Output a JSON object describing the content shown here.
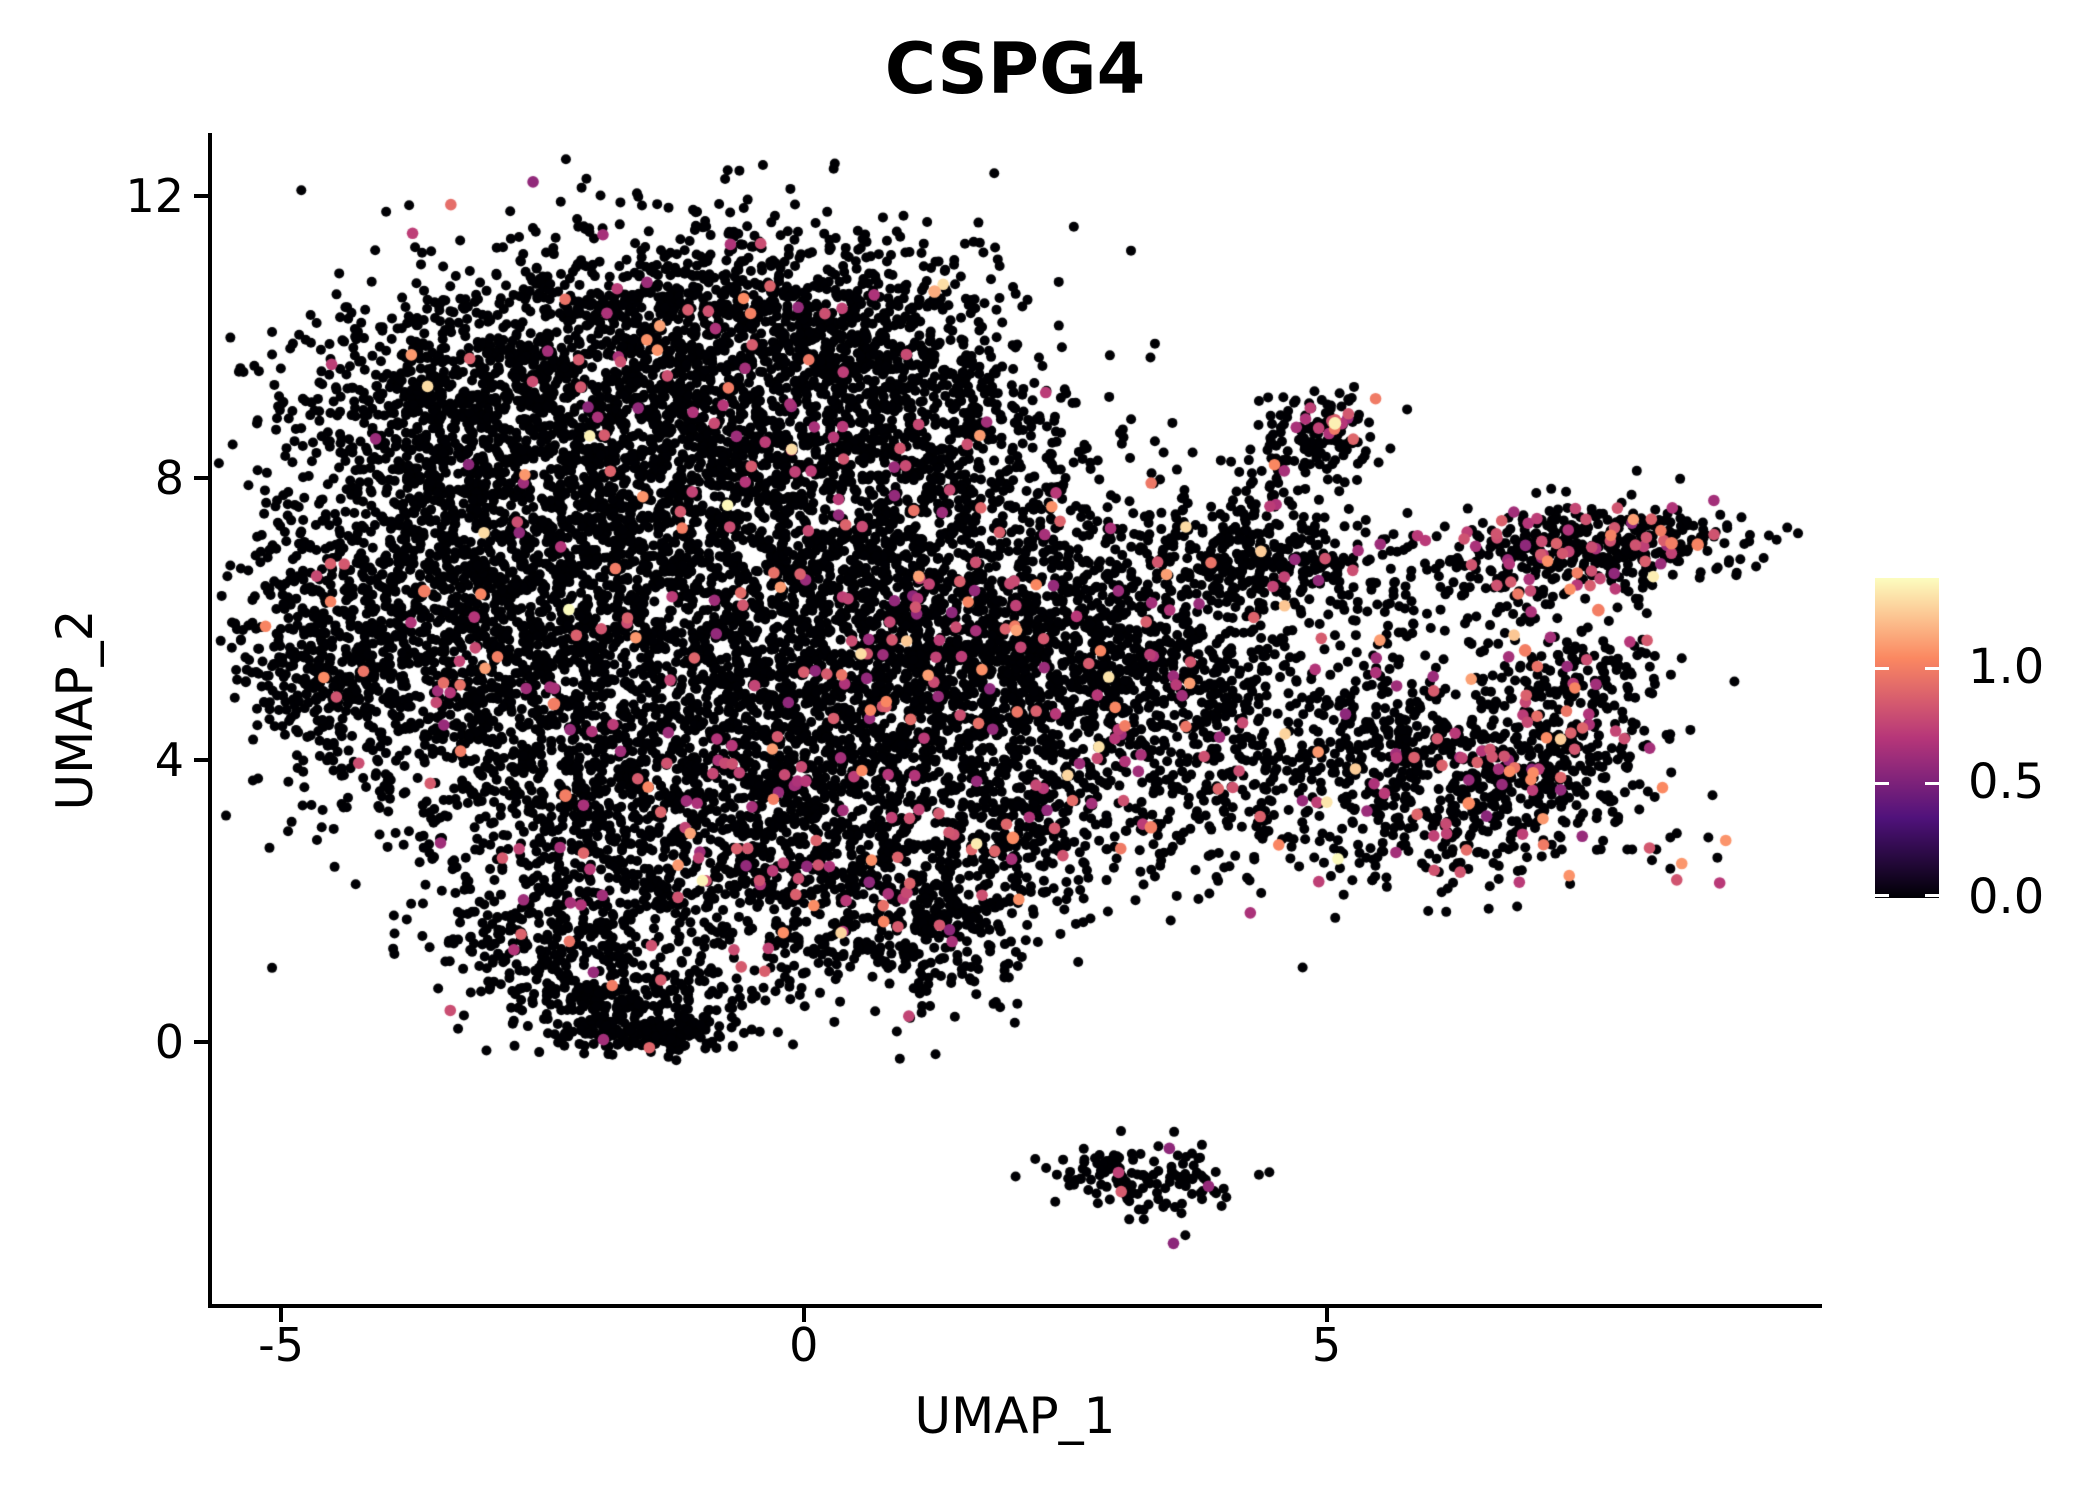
{
  "figure": {
    "background": "#FFFFFF"
  },
  "title": "CSPG4",
  "axes": {
    "x": {
      "label": "UMAP_1",
      "ticks": [
        {
          "value": -5,
          "label": "-5"
        },
        {
          "value": 0,
          "label": "0"
        },
        {
          "value": 5,
          "label": "5"
        }
      ],
      "range": [
        -5.68,
        9.72
      ]
    },
    "y": {
      "label": "UMAP_2",
      "ticks": [
        {
          "value": 0,
          "label": "0"
        },
        {
          "value": 4,
          "label": "4"
        },
        {
          "value": 8,
          "label": "8"
        },
        {
          "value": 12,
          "label": "12"
        }
      ],
      "range": [
        -3.74,
        12.87
      ]
    }
  },
  "colorbar": {
    "ticks": [
      {
        "value": 1.0,
        "label": "1.0"
      },
      {
        "value": 0.5,
        "label": "0.5"
      },
      {
        "value": 0.0,
        "label": "0.0"
      }
    ],
    "vmin": 0.0,
    "vmax": 1.39,
    "colormap": "magma",
    "stops": [
      {
        "t": 0.0,
        "color": "#000004"
      },
      {
        "t": 0.25,
        "color": "#50127B"
      },
      {
        "t": 0.5,
        "color": "#B63679"
      },
      {
        "t": 0.75,
        "color": "#FB8861"
      },
      {
        "t": 1.0,
        "color": "#FCFDBF"
      }
    ]
  },
  "chart_data": {
    "type": "scatter",
    "title": "CSPG4",
    "xlabel": "UMAP_1",
    "ylabel": "UMAP_2",
    "xlim": [
      -5.68,
      9.72
    ],
    "ylim": [
      -3.74,
      12.87
    ],
    "x_ticks": [
      -5,
      0,
      5
    ],
    "y_ticks": [
      0,
      4,
      8,
      12
    ],
    "grid": false,
    "legend_position": "right",
    "color_scale": {
      "vmin": 0.0,
      "vmax": 1.39,
      "colormap": "magma"
    },
    "point_radius_px": 5,
    "colored_point_radius_px": 5.8,
    "seed": 20,
    "expression_sampling": {
      "mid_range": [
        0.55,
        0.9
      ],
      "high_range": [
        0.92,
        1.12
      ],
      "top_range": [
        1.22,
        1.39
      ],
      "p_mid": 0.78,
      "p_high": 0.17,
      "p_top": 0.05
    },
    "clusters": [
      [
        -3.2,
        9.2,
        0.95,
        0.85,
        800,
        0.02
      ],
      [
        -1.3,
        10.2,
        0.95,
        0.75,
        720,
        0.02
      ],
      [
        0.3,
        10.1,
        0.75,
        0.8,
        520,
        0.03
      ],
      [
        -3.6,
        6.6,
        0.95,
        1.05,
        820,
        0.02
      ],
      [
        -4.5,
        5.3,
        0.45,
        0.75,
        280,
        0.02
      ],
      [
        -2.1,
        7.9,
        1.1,
        0.95,
        820,
        0.02
      ],
      [
        -0.5,
        8.2,
        0.95,
        0.95,
        640,
        0.03
      ],
      [
        -2.6,
        4.6,
        1.1,
        1.1,
        820,
        0.03
      ],
      [
        -1.0,
        5.6,
        1.1,
        1.1,
        820,
        0.04
      ],
      [
        0.5,
        6.1,
        0.95,
        1.1,
        720,
        0.05
      ],
      [
        1.5,
        7.2,
        0.75,
        0.95,
        460,
        0.05
      ],
      [
        -1.6,
        2.6,
        0.95,
        0.85,
        540,
        0.03
      ],
      [
        -2.4,
        1.4,
        0.6,
        0.55,
        230,
        0.02
      ],
      [
        -1.65,
        0.55,
        0.55,
        0.33,
        250,
        0.015
      ],
      [
        -1.55,
        0.12,
        0.45,
        0.13,
        130,
        0.01
      ],
      [
        0.0,
        3.6,
        0.95,
        0.95,
        640,
        0.045
      ],
      [
        0.4,
        1.9,
        0.7,
        0.7,
        310,
        0.04
      ],
      [
        1.4,
        1.9,
        0.5,
        0.65,
        210,
        0.04
      ],
      [
        1.4,
        4.6,
        0.85,
        0.95,
        540,
        0.05
      ],
      [
        2.2,
        5.6,
        0.7,
        0.85,
        400,
        0.05
      ],
      [
        2.1,
        3.1,
        0.6,
        0.7,
        270,
        0.05
      ],
      [
        3.0,
        5.3,
        0.55,
        0.95,
        260,
        0.06
      ],
      [
        3.7,
        5.0,
        0.55,
        1.1,
        280,
        0.06
      ],
      [
        4.2,
        4.3,
        0.5,
        0.9,
        150,
        0.07
      ],
      [
        1.0,
        8.9,
        0.75,
        0.75,
        400,
        0.03
      ],
      [
        2.3,
        8.9,
        0.45,
        0.6,
        45,
        0.03
      ],
      [
        4.6,
        6.8,
        0.65,
        0.35,
        250,
        0.06
      ],
      [
        3.9,
        6.9,
        0.4,
        0.5,
        70,
        0.05
      ],
      [
        5.5,
        6.1,
        0.4,
        0.5,
        50,
        0.08
      ],
      [
        4.95,
        8.6,
        0.3,
        0.32,
        120,
        0.08
      ],
      [
        5.05,
        8.8,
        0.1,
        0.07,
        8,
        0.9
      ],
      [
        4.55,
        7.9,
        0.3,
        0.45,
        50,
        0.04
      ],
      [
        3.9,
        7.6,
        0.5,
        0.55,
        30,
        0.05
      ],
      [
        7.55,
        7.05,
        0.72,
        0.28,
        400,
        0.12
      ],
      [
        6.8,
        6.6,
        0.3,
        0.3,
        80,
        0.15
      ],
      [
        7.3,
        5.25,
        0.45,
        0.4,
        180,
        0.12
      ],
      [
        6.2,
        3.6,
        0.85,
        0.7,
        520,
        0.06
      ],
      [
        5.6,
        4.3,
        0.4,
        0.55,
        110,
        0.06
      ],
      [
        7.3,
        4.0,
        0.45,
        0.5,
        170,
        0.08
      ],
      [
        8.3,
        2.75,
        0.35,
        0.18,
        13,
        0.15
      ],
      [
        3.6,
        2.9,
        0.5,
        0.6,
        40,
        0.06
      ],
      [
        4.5,
        4.6,
        0.6,
        0.8,
        70,
        0.06
      ],
      [
        3.35,
        -1.95,
        0.42,
        0.28,
        115,
        0.04
      ],
      [
        2.7,
        -1.75,
        0.3,
        0.12,
        20,
        0.05
      ]
    ],
    "highlight_points": [
      [
        5.08,
        8.78,
        1.35
      ],
      [
        8.3,
        7.08,
        1.0
      ],
      [
        8.55,
        7.06,
        1.02
      ],
      [
        7.6,
        6.13,
        1.0
      ],
      [
        6.9,
        5.56,
        1.0
      ],
      [
        6.36,
        3.39,
        1.05
      ],
      [
        -2.39,
        4.8,
        1.0
      ],
      [
        -2.28,
        3.5,
        1.0
      ],
      [
        3.32,
        3.05,
        1.0
      ],
      [
        -3.63,
        6.4,
        1.0
      ],
      [
        2.0,
        2.9,
        1.05
      ],
      [
        1.25,
        10.65,
        1.15
      ]
    ]
  }
}
